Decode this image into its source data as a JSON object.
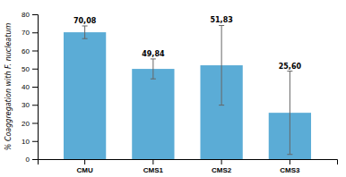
{
  "chart_data": {
    "type": "bar",
    "categories": [
      "CMU",
      "CMS1",
      "CMS2",
      "CMS3"
    ],
    "values": [
      70.08,
      49.84,
      51.83,
      25.6
    ],
    "value_labels": [
      "70,08",
      "49,84",
      "51,83",
      "25,60"
    ],
    "errors": [
      3.5,
      5.5,
      22.0,
      23.0
    ],
    "color": "#5BACD6",
    "ylabel": "% Coaggregation with F. nucleatum",
    "ylim": [
      0,
      80
    ],
    "yticks": [
      0,
      10,
      20,
      30,
      40,
      50,
      60,
      70,
      80
    ],
    "data_labels": true,
    "grid": false
  }
}
